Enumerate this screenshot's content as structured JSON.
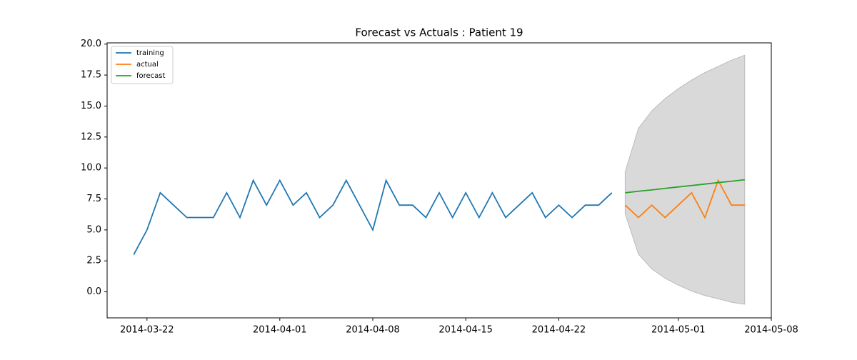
{
  "chart_data": {
    "type": "line",
    "title": "Forecast vs Actuals : Patient 19",
    "xlim": [
      "2014-03-19",
      "2014-05-08"
    ],
    "xticks": [
      "2014-03-22",
      "2014-04-01",
      "2014-04-08",
      "2014-04-15",
      "2014-04-22",
      "2014-05-01",
      "2014-05-08"
    ],
    "ylim": [
      -2.1,
      20.1
    ],
    "yticks": [
      {
        "value": 0,
        "label": "0.0"
      },
      2.5,
      {
        "value": 5,
        "label": "5.0"
      },
      7.5,
      {
        "value": 10,
        "label": "10.0"
      },
      12.5,
      {
        "value": 15,
        "label": "15.0"
      },
      17.5,
      {
        "value": 20,
        "label": "20.0"
      }
    ],
    "legend": "upper left",
    "series": [
      {
        "name": "training",
        "color": "#1f77b4",
        "x": [
          "2014-03-21",
          "2014-03-22",
          "2014-03-23",
          "2014-03-24",
          "2014-03-25",
          "2014-03-26",
          "2014-03-27",
          "2014-03-28",
          "2014-03-29",
          "2014-03-30",
          "2014-03-31",
          "2014-04-01",
          "2014-04-02",
          "2014-04-03",
          "2014-04-04",
          "2014-04-05",
          "2014-04-06",
          "2014-04-07",
          "2014-04-08",
          "2014-04-09",
          "2014-04-10",
          "2014-04-11",
          "2014-04-12",
          "2014-04-13",
          "2014-04-14",
          "2014-04-15",
          "2014-04-16",
          "2014-04-17",
          "2014-04-18",
          "2014-04-19",
          "2014-04-20",
          "2014-04-21",
          "2014-04-22",
          "2014-04-23",
          "2014-04-24",
          "2014-04-25",
          "2014-04-26"
        ],
        "values": [
          3,
          5,
          8,
          7,
          6,
          6,
          6,
          8,
          6,
          9,
          7,
          9,
          7,
          8,
          6,
          7,
          9,
          7,
          5,
          9,
          7,
          7,
          6,
          8,
          6,
          8,
          6,
          8,
          6,
          7,
          8,
          6,
          7,
          6,
          7,
          7,
          8
        ]
      },
      {
        "name": "actual",
        "color": "#ff7f0e",
        "x": [
          "2014-04-27",
          "2014-04-28",
          "2014-04-29",
          "2014-04-30",
          "2014-05-01",
          "2014-05-02",
          "2014-05-03",
          "2014-05-04",
          "2014-05-05",
          "2014-05-06"
        ],
        "values": [
          7,
          6,
          7,
          6,
          7,
          8,
          6,
          9,
          7,
          7
        ]
      },
      {
        "name": "forecast",
        "color": "#2ca02c",
        "x": [
          "2014-04-27",
          "2014-04-28",
          "2014-04-29",
          "2014-04-30",
          "2014-05-01",
          "2014-05-02",
          "2014-05-03",
          "2014-05-04",
          "2014-05-05",
          "2014-05-06"
        ],
        "values": [
          8.0,
          8.12,
          8.23,
          8.35,
          8.47,
          8.58,
          8.7,
          8.82,
          8.93,
          9.05
        ]
      }
    ],
    "band": {
      "color": "#d9d9d9",
      "x": [
        "2014-04-27",
        "2014-04-28",
        "2014-04-29",
        "2014-04-30",
        "2014-05-01",
        "2014-05-02",
        "2014-05-03",
        "2014-05-04",
        "2014-05-05",
        "2014-05-06"
      ],
      "lower": [
        6.3,
        3.04,
        1.86,
        1.1,
        0.54,
        0.06,
        -0.3,
        -0.56,
        -0.84,
        -1.0
      ],
      "upper": [
        9.7,
        13.2,
        14.6,
        15.6,
        16.4,
        17.1,
        17.7,
        18.2,
        18.7,
        19.1
      ]
    }
  }
}
